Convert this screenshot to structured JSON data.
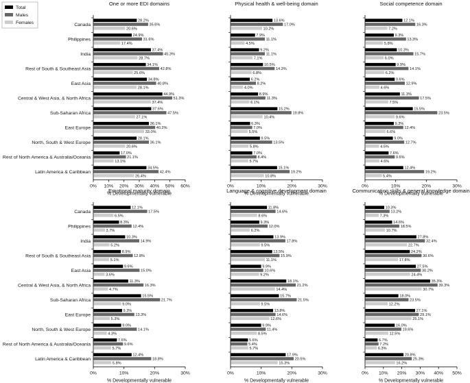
{
  "legend": {
    "placement": "top-left",
    "entries": [
      {
        "name": "Total",
        "color": "#000000"
      },
      {
        "name": "Males",
        "color": "#666666"
      },
      {
        "name": "Females",
        "color": "#cccccc"
      }
    ]
  },
  "categories": [
    "Canada",
    "Philippines",
    "India",
    "Rest of South & Southeast Asia",
    "East Asia",
    "Central & West Asia, & North Africa",
    "Sub-Saharan Africa",
    "East Europe",
    "North, South & West Europe",
    "Rest of North America & Australia/Oceania",
    "Latin America & Caribbean"
  ],
  "chart_data": [
    {
      "type": "bar",
      "orientation": "horizontal",
      "title": "One or more EDI domains",
      "xlabel": "% Developmentally vulnerable",
      "xlim": [
        0,
        60
      ],
      "xticks": [
        "0%",
        "10%",
        "20%",
        "30%",
        "40%",
        "50%",
        "60%"
      ],
      "series": [
        {
          "name": "Total",
          "values": [
            28.2,
            24.9,
            37.4,
            34.1,
            34.8,
            44.9,
            37.6,
            36.1,
            28.1,
            17.0,
            34.5
          ],
          "labels": [
            "28.2%",
            "24.9%",
            "37.4%",
            "34.1%",
            "34.8%",
            "44.9%",
            "37.6%",
            "36.1%",
            "28.1%",
            "17.0%",
            "34.5%"
          ]
        },
        {
          "name": "Males",
          "values": [
            35.6,
            31.6,
            45.3,
            42.8,
            40.8,
            51.3,
            47.5,
            40.2,
            36.1,
            21.1,
            42.4
          ],
          "labels": [
            "35.6%",
            "31.6%",
            "45.3%",
            "42.8%",
            "40.8%",
            "51.3%",
            "47.5%",
            "40.2%",
            "36.1%",
            "21.1%",
            "42.4%"
          ]
        },
        {
          "name": "Females",
          "values": [
            20.6,
            17.4,
            28.7,
            25.6,
            28.1,
            37.4,
            27.1,
            33.0,
            20.6,
            13.1,
            26.4
          ],
          "labels": [
            "20.6%",
            "17.4%",
            "28.7%",
            "25.6%",
            "28.1%",
            "37.4%",
            "27.1%",
            "33.0%",
            "20.6%",
            "13.1%",
            "26.4%"
          ]
        }
      ]
    },
    {
      "type": "bar",
      "orientation": "horizontal",
      "title": "Physical health & well-being domain",
      "xlabel": "% Developmentally vulnerable",
      "xlim": [
        0,
        30
      ],
      "xticks": [
        "0%",
        "10%",
        "20%",
        "30%"
      ],
      "series": [
        {
          "name": "Total",
          "values": [
            13.6,
            7.9,
            9.2,
            10.5,
            6.2,
            8.9,
            15.2,
            6.3,
            9.5,
            7.0,
            15.1
          ],
          "labels": [
            "13.6%",
            "7.9%",
            "9.2%",
            "10.5%",
            "6.2%",
            "8.9%",
            "15.2%",
            "6.3%",
            "9.5%",
            "7.0%",
            "15.1%"
          ]
        },
        {
          "name": "Males",
          "values": [
            17.0,
            11.1,
            11.1,
            14.3,
            8.2,
            11.3,
            19.8,
            7.0,
            13.5,
            8.4,
            19.2
          ],
          "labels": [
            "17.0%",
            "11.1%",
            "11.1%",
            "14.3%",
            "8.2%",
            "11.3%",
            "19.8%",
            "7.0%",
            "13.5%",
            "8.4%",
            "19.2%"
          ]
        },
        {
          "name": "Females",
          "values": [
            10.2,
            4.5,
            7.1,
            6.8,
            4.0,
            6.1,
            10.4,
            5.5,
            5.8,
            5.7,
            10.8
          ],
          "labels": [
            "10.2%",
            "4.5%",
            "7.1%",
            "6.8%",
            "4.0%",
            "6.1%",
            "10.4%",
            "5.5%",
            "5.8%",
            "5.7%",
            "10.8%"
          ]
        }
      ]
    },
    {
      "type": "bar",
      "orientation": "horizontal",
      "title": "Social competence domain",
      "xlabel": "% Developmentally vulnerable",
      "xlim": [
        0,
        30
      ],
      "xticks": [
        "0%",
        "10%",
        "20%",
        "30%"
      ],
      "series": [
        {
          "name": "Total",
          "values": [
            12.1,
            9.3,
            10.3,
            9.9,
            9.6,
            11.3,
            15.5,
            9.3,
            9.0,
            7.6,
            12.4
          ],
          "labels": [
            "12.1%",
            "9.3%",
            "10.3%",
            "9.9%",
            "9.6%",
            "11.3%",
            "15.5%",
            "9.3%",
            "9.0%",
            "7.6%",
            "12.4%"
          ]
        },
        {
          "name": "Males",
          "values": [
            16.3,
            13.3,
            15.7,
            14.1,
            12.9,
            17.5,
            23.5,
            12.4,
            12.7,
            9.6,
            19.2
          ],
          "labels": [
            "16.3%",
            "13.3%",
            "15.7%",
            "14.1%",
            "12.9%",
            "17.5%",
            "23.5%",
            "12.4%",
            "12.7%",
            "9.6%",
            "19.2%"
          ]
        },
        {
          "name": "Females",
          "values": [
            7.2,
            5.8,
            6.0,
            6.2,
            4.6,
            7.5,
            9.6,
            6.6,
            4.5,
            4.6,
            5.4
          ],
          "labels": [
            "7.2%",
            "5.8%",
            "6.0%",
            "6.2%",
            "4.6%",
            "7.5%",
            "9.6%",
            "6.6%",
            "4.5%",
            "4.6%",
            "5.4%"
          ]
        }
      ]
    },
    {
      "type": "bar",
      "orientation": "horizontal",
      "title": "Emotional maturity domain",
      "xlabel": "% Developmentally vulnerable",
      "xlim": [
        0,
        30
      ],
      "xticks": [
        "0%",
        "10%",
        "20%",
        "30%"
      ],
      "series": [
        {
          "name": "Total",
          "values": [
            12.1,
            8.3,
            10.3,
            8.9,
            9.6,
            11.3,
            15.5,
            9.3,
            9.0,
            7.6,
            12.4
          ],
          "labels": [
            "12.1%",
            "8.3%",
            "10.3%",
            "8.9%",
            "9.6%",
            "11.3%",
            "15.5%",
            "9.3%",
            "9.0%",
            "7.6%",
            "12.4%"
          ]
        },
        {
          "name": "Males",
          "values": [
            17.5,
            12.4,
            14.9,
            12.8,
            15.0,
            16.3,
            21.7,
            13.3,
            14.1,
            9.6,
            18.8
          ],
          "labels": [
            "17.5%",
            "12.4%",
            "14.9%",
            "12.8%",
            "15.0%",
            "16.3%",
            "21.7%",
            "13.3%",
            "14.1%",
            "9.6%",
            "18.8%"
          ]
        },
        {
          "name": "Females",
          "values": [
            6.5,
            3.7,
            5.2,
            5.1,
            3.6,
            4.7,
            9.0,
            5.3,
            4.3,
            5.7,
            5.8
          ],
          "labels": [
            "6.5%",
            "3.7%",
            "5.2%",
            "5.1%",
            "3.6%",
            "4.7%",
            "9.0%",
            "5.3%",
            "4.3%",
            "5.7%",
            "5.8%"
          ]
        }
      ]
    },
    {
      "type": "bar",
      "orientation": "horizontal",
      "title": "Language & cognitive development domain",
      "xlabel": "% Developmentally vulnerable",
      "xlim": [
        0,
        30
      ],
      "xticks": [
        "0%",
        "10%",
        "20%",
        "30%"
      ],
      "series": [
        {
          "name": "Total",
          "values": [
            11.8,
            9.3,
            13.9,
            13.5,
            9.9,
            18.1,
            15.7,
            13.8,
            9.9,
            5.6,
            17.9
          ],
          "labels": [
            "11.8%",
            "9.3%",
            "13.9%",
            "13.5%",
            "9.9%",
            "18.1%",
            "15.7%",
            "13.8%",
            "9.9%",
            "5.6%",
            "17.9%"
          ]
        },
        {
          "name": "Males",
          "values": [
            14.6,
            12.0,
            17.8,
            15.9,
            10.6,
            21.2,
            21.5,
            14.6,
            11.4,
            5.4,
            20.5
          ],
          "labels": [
            "14.6%",
            "12.0%",
            "17.8%",
            "15.9%",
            "10.6%",
            "21.2%",
            "21.5%",
            "14.6%",
            "11.4%",
            "5.4%",
            "20.5%"
          ]
        },
        {
          "name": "Females",
          "values": [
            8.6,
            6.2,
            9.5,
            11.1,
            9.2,
            14.4,
            9.5,
            12.6,
            8.5,
            5.7,
            15.3
          ],
          "labels": [
            "8.6%",
            "6.2%",
            "9.5%",
            "11.1%",
            "9.2%",
            "14.4%",
            "9.5%",
            "12.6%",
            "8.5%",
            "5.7%",
            "15.3%"
          ]
        }
      ]
    },
    {
      "type": "bar",
      "orientation": "horizontal",
      "title": "Communication skills & general knowledge domain",
      "xlabel": "% Developmentally vulnerable",
      "xlim": [
        0,
        50
      ],
      "xticks": [
        "0%",
        "10%",
        "20%",
        "30%",
        "40%",
        "50%"
      ],
      "series": [
        {
          "name": "Total",
          "values": [
            10.3,
            14.6,
            27.8,
            24.2,
            27.5,
            35.3,
            18.0,
            27.1,
            16.0,
            6.7,
            20.8
          ],
          "labels": [
            "10.3%",
            "14.6%",
            "27.8%",
            "24.2%",
            "27.5%",
            "35.3%",
            "18.0%",
            "27.1%",
            "16.0%",
            "6.7%",
            "20.8%"
          ]
        },
        {
          "name": "Males",
          "values": [
            13.2,
            18.5,
            32.4,
            30.6,
            30.2,
            39.3,
            23.5,
            29.1,
            19.6,
            7.2,
            25.3
          ],
          "labels": [
            "13.2%",
            "18.5%",
            "32.4%",
            "30.6%",
            "30.2%",
            "39.3%",
            "23.5%",
            "29.1%",
            "19.6%",
            "7.2%",
            "25.3%"
          ]
        },
        {
          "name": "Females",
          "values": [
            7.3,
            10.7,
            22.7,
            17.8,
            24.4,
            30.7,
            12.2,
            25.1,
            12.5,
            6.3,
            16.2
          ],
          "labels": [
            "7.3%",
            "10.7%",
            "22.7%",
            "17.8%",
            "24.4%",
            "30.7%",
            "12.2%",
            "25.1%",
            "12.5%",
            "6.3%",
            "16.2%"
          ]
        }
      ]
    }
  ]
}
